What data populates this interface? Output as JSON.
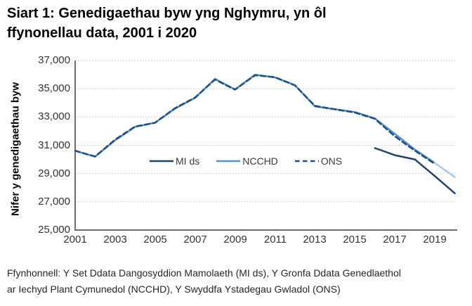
{
  "title": {
    "lines": [
      "Siart 1: Genedigaethau byw yng Nghymru, yn ôl",
      "ffynonellau data, 2001 i 2020"
    ]
  },
  "footer": {
    "lines": [
      "Ffynhonnell: Y Set Ddata Dangosyddion Mamolaeth (MI ds), Y Gronfa Ddata Genedlaethol",
      "ar Iechyd Plant Cymunedol (NCCHD), Y Swyddfa Ystadegau Gwladol (ONS)"
    ]
  },
  "colors": {
    "axis": "#6B6B6B",
    "grid": "#BFBFBF",
    "mids": "#22426B",
    "ncchd": "#4D93D8",
    "ncchd_provisional": "#A8C7E8",
    "ons": "#1F4E79"
  },
  "chart_data": {
    "type": "line",
    "title": "Siart 1: Genedigaethau byw yng Nghymru, yn ôl ffynonellau data, 2001 i 2020",
    "xlabel": "",
    "ylabel": "Nifer y genedigaethau byw",
    "ylim": [
      25000,
      37000
    ],
    "grid": "horizontal-dotted",
    "legend_position": "inside-left-middle",
    "yticks": [
      {
        "value": 25000,
        "label": "25,000"
      },
      {
        "value": 27000,
        "label": "27,000"
      },
      {
        "value": 29000,
        "label": "29,000"
      },
      {
        "value": 31000,
        "label": "31,000"
      },
      {
        "value": 33000,
        "label": "33,000"
      },
      {
        "value": 35000,
        "label": "35,000"
      },
      {
        "value": 37000,
        "label": "37,000"
      }
    ],
    "xticks": [
      {
        "value": 2001,
        "label": "2001"
      },
      {
        "value": 2003,
        "label": "2003"
      },
      {
        "value": 2005,
        "label": "2005"
      },
      {
        "value": 2007,
        "label": "2007"
      },
      {
        "value": 2009,
        "label": "2009"
      },
      {
        "value": 2011,
        "label": "2011"
      },
      {
        "value": 2013,
        "label": "2013"
      },
      {
        "value": 2015,
        "label": "2015"
      },
      {
        "value": 2017,
        "label": "2017"
      },
      {
        "value": 2019,
        "label": "2019"
      }
    ],
    "series": [
      {
        "name": "NCCHD",
        "color": "#4D93D8",
        "dash": null,
        "width": 2.5,
        "x": [
          2001,
          2002,
          2003,
          2004,
          2005,
          2006,
          2007,
          2008,
          2009,
          2010,
          2011,
          2012,
          2013,
          2014,
          2015,
          2016,
          2017,
          2018,
          2019,
          2020
        ],
        "values": [
          30600,
          30200,
          31350,
          32300,
          32600,
          33600,
          34350,
          35700,
          34950,
          36000,
          35800,
          35250,
          33750,
          33550,
          33350,
          32900,
          31800,
          30700,
          29750,
          28750
        ],
        "provisional": {
          "from_x": 2019,
          "color": "#A8C7E8"
        }
      },
      {
        "name": "ONS",
        "color": "#1F4E79",
        "dash": "7 4.5",
        "width": 2.5,
        "x": [
          2001,
          2002,
          2003,
          2004,
          2005,
          2006,
          2007,
          2008,
          2009,
          2010,
          2011,
          2012,
          2013,
          2014,
          2015,
          2016,
          2017,
          2018,
          2019
        ],
        "values": [
          30616,
          30205,
          31400,
          32325,
          32593,
          33628,
          34374,
          35650,
          34938,
          35952,
          35820,
          35238,
          33786,
          33544,
          33316,
          32871,
          31634,
          30621,
          29680
        ]
      },
      {
        "name": "MI ds",
        "color": "#22426B",
        "dash": null,
        "width": 2.5,
        "x": [
          2016,
          2017,
          2018,
          2019,
          2020
        ],
        "values": [
          30800,
          30300,
          30000,
          28820,
          27600
        ]
      }
    ],
    "legend": [
      {
        "label": "MI ds",
        "color": "#22426B",
        "dashed": false
      },
      {
        "label": "NCCHD",
        "color": "#4D93D8",
        "dashed": false
      },
      {
        "label": "ONS",
        "color": "#1F4E79",
        "dashed": true
      }
    ]
  }
}
